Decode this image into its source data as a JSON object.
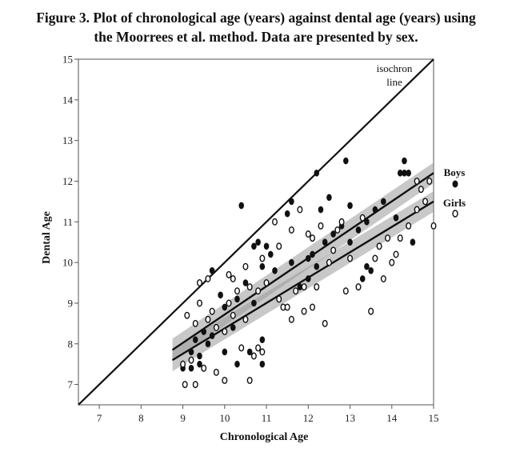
{
  "caption": {
    "line1": "Figure 3. Plot of chronological age (years) against dental age (years) using",
    "line2": "the Moorrees et al. method. Data are presented by sex."
  },
  "chart_data": {
    "type": "scatter",
    "xlabel": "Chronological Age",
    "ylabel": "Dental Age",
    "xlim": [
      6.5,
      15
    ],
    "ylim": [
      6.5,
      15
    ],
    "xticks": [
      7,
      8,
      9,
      10,
      11,
      12,
      13,
      14,
      15
    ],
    "yticks": [
      7,
      8,
      9,
      10,
      11,
      12,
      13,
      14,
      15
    ],
    "grid": false,
    "legend": "right",
    "reference_line": {
      "label_line1": "isochron",
      "label_line2": "line",
      "points": [
        [
          6.5,
          6.5
        ],
        [
          15,
          15
        ]
      ]
    },
    "series": [
      {
        "name": "Boys",
        "marker": "filled",
        "fit": {
          "from": [
            8.75,
            7.85
          ],
          "to": [
            15,
            12.2
          ]
        },
        "points": [
          [
            9.0,
            7.4
          ],
          [
            9.2,
            7.4
          ],
          [
            9.4,
            7.7
          ],
          [
            9.6,
            8.0
          ],
          [
            9.3,
            8.1
          ],
          [
            9.5,
            8.3
          ],
          [
            9.7,
            8.2
          ],
          [
            9.2,
            7.8
          ],
          [
            9.4,
            7.5
          ],
          [
            10.0,
            7.8
          ],
          [
            10.3,
            7.5
          ],
          [
            10.6,
            7.8
          ],
          [
            10.9,
            7.5
          ],
          [
            10.2,
            8.4
          ],
          [
            10.0,
            8.9
          ],
          [
            10.3,
            9.1
          ],
          [
            9.9,
            9.2
          ],
          [
            10.7,
            9.0
          ],
          [
            10.5,
            9.5
          ],
          [
            10.9,
            9.9
          ],
          [
            11.1,
            10.2
          ],
          [
            10.7,
            10.4
          ],
          [
            10.8,
            10.5
          ],
          [
            10.4,
            11.4
          ],
          [
            9.7,
            9.8
          ],
          [
            10.9,
            8.1
          ],
          [
            11.2,
            9.8
          ],
          [
            11.6,
            10.0
          ],
          [
            11.5,
            11.2
          ],
          [
            11.6,
            11.5
          ],
          [
            12.0,
            9.6
          ],
          [
            12.2,
            9.9
          ],
          [
            12.1,
            10.2
          ],
          [
            12.4,
            10.5
          ],
          [
            12.6,
            10.7
          ],
          [
            12.8,
            10.9
          ],
          [
            12.3,
            11.3
          ],
          [
            12.5,
            11.6
          ],
          [
            12.2,
            12.2
          ],
          [
            13.0,
            10.5
          ],
          [
            13.2,
            10.8
          ],
          [
            13.4,
            11.0
          ],
          [
            13.0,
            11.4
          ],
          [
            12.9,
            12.5
          ],
          [
            13.6,
            11.3
          ],
          [
            13.8,
            11.5
          ],
          [
            13.4,
            9.9
          ],
          [
            13.3,
            9.6
          ],
          [
            14.1,
            11.1
          ],
          [
            14.2,
            12.2
          ],
          [
            14.3,
            12.2
          ],
          [
            14.4,
            12.2
          ],
          [
            14.5,
            10.5
          ],
          [
            14.3,
            12.5
          ],
          [
            13.5,
            9.8
          ],
          [
            11.8,
            9.4
          ],
          [
            11.0,
            10.4
          ],
          [
            12.0,
            10.1
          ]
        ]
      },
      {
        "name": "Girls",
        "marker": "hollow",
        "fit": {
          "from": [
            8.75,
            7.6
          ],
          "to": [
            15,
            11.5
          ]
        },
        "points": [
          [
            9.05,
            7.0
          ],
          [
            9.3,
            7.0
          ],
          [
            9.0,
            7.5
          ],
          [
            9.2,
            7.6
          ],
          [
            9.5,
            7.4
          ],
          [
            9.8,
            7.3
          ],
          [
            10.0,
            7.1
          ],
          [
            10.6,
            7.1
          ],
          [
            9.3,
            8.5
          ],
          [
            9.6,
            8.6
          ],
          [
            9.7,
            8.8
          ],
          [
            10.0,
            8.3
          ],
          [
            10.2,
            8.7
          ],
          [
            10.1,
            9.0
          ],
          [
            10.5,
            8.6
          ],
          [
            10.4,
            7.9
          ],
          [
            10.7,
            7.7
          ],
          [
            10.8,
            7.9
          ],
          [
            10.9,
            7.8
          ],
          [
            10.3,
            9.3
          ],
          [
            10.6,
            9.4
          ],
          [
            10.8,
            9.3
          ],
          [
            9.1,
            8.7
          ],
          [
            9.4,
            9.0
          ],
          [
            9.6,
            9.6
          ],
          [
            9.4,
            9.5
          ],
          [
            10.2,
            9.6
          ],
          [
            10.5,
            9.9
          ],
          [
            11.0,
            9.5
          ],
          [
            11.3,
            9.1
          ],
          [
            11.4,
            8.9
          ],
          [
            11.5,
            8.9
          ],
          [
            11.6,
            8.6
          ],
          [
            11.7,
            9.3
          ],
          [
            11.9,
            8.8
          ],
          [
            12.1,
            8.9
          ],
          [
            12.2,
            9.4
          ],
          [
            12.4,
            8.5
          ],
          [
            11.9,
            9.4
          ],
          [
            11.8,
            11.3
          ],
          [
            11.6,
            10.8
          ],
          [
            11.2,
            11.0
          ],
          [
            12.1,
            10.6
          ],
          [
            12.5,
            10.0
          ],
          [
            12.6,
            10.3
          ],
          [
            12.8,
            11.0
          ],
          [
            13.0,
            10.1
          ],
          [
            12.9,
            9.3
          ],
          [
            13.2,
            9.4
          ],
          [
            13.5,
            8.8
          ],
          [
            13.6,
            10.1
          ],
          [
            13.7,
            10.4
          ],
          [
            13.9,
            10.6
          ],
          [
            13.8,
            9.6
          ],
          [
            14.0,
            10.0
          ],
          [
            14.2,
            10.6
          ],
          [
            14.4,
            10.9
          ],
          [
            14.6,
            11.3
          ],
          [
            14.8,
            11.5
          ],
          [
            14.7,
            11.8
          ],
          [
            14.9,
            12.0
          ],
          [
            15.0,
            10.9
          ],
          [
            14.1,
            10.2
          ],
          [
            13.3,
            11.1
          ],
          [
            12.7,
            10.8
          ],
          [
            12.3,
            10.9
          ],
          [
            11.3,
            10.4
          ],
          [
            10.9,
            10.1
          ],
          [
            10.1,
            9.7
          ],
          [
            9.8,
            8.4
          ],
          [
            12.0,
            10.7
          ],
          [
            14.6,
            12.0
          ]
        ]
      }
    ]
  }
}
